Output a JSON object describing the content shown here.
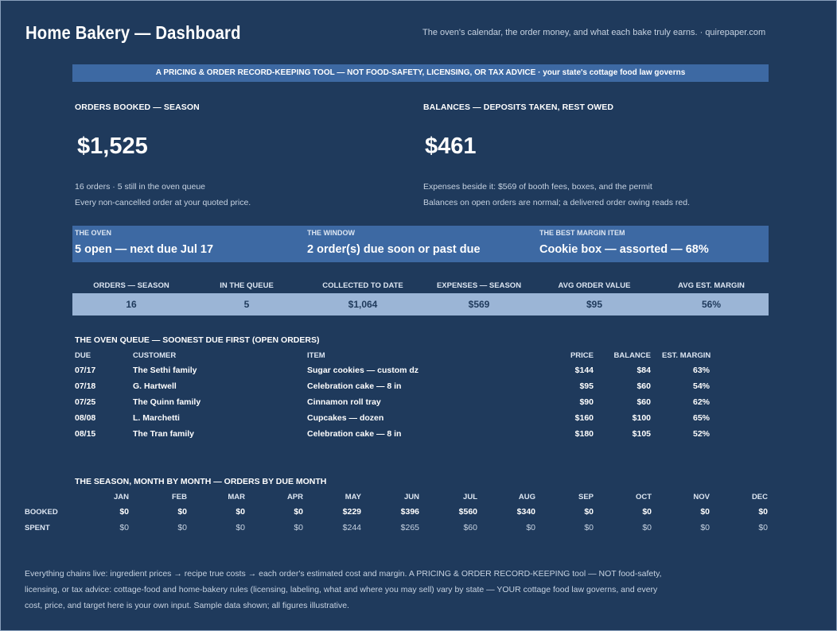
{
  "header": {
    "title": "Home Bakery — Dashboard",
    "tagline": "The oven's calendar, the order money, and what each bake truly earns.  ·  quirepaper.com"
  },
  "banner": "A PRICING & ORDER RECORD-KEEPING TOOL — NOT FOOD-SAFETY, LICENSING, OR TAX ADVICE  ·  your state's cottage food law governs",
  "orders_booked": {
    "label": "ORDERS BOOKED — SEASON",
    "value": "$1,525",
    "note1": "16 orders  ·  5 still in the oven queue",
    "note2": "Every non-cancelled order at your quoted price."
  },
  "balances": {
    "label": "BALANCES — DEPOSITS TAKEN, REST OWED",
    "value": "$461",
    "note1": "Expenses beside it: $569 of booth fees, boxes, and the permit",
    "note2": "Balances on open orders are normal; a delivered order owing reads red."
  },
  "status": [
    {
      "label": "THE OVEN",
      "value": "5 open — next due Jul 17"
    },
    {
      "label": "THE WINDOW",
      "value": "2 order(s) due soon or past due"
    },
    {
      "label": "THE BEST MARGIN ITEM",
      "value": "Cookie box — assorted — 68%"
    }
  ],
  "kpis": [
    {
      "label": "ORDERS — SEASON",
      "value": "16"
    },
    {
      "label": "IN THE QUEUE",
      "value": "5"
    },
    {
      "label": "COLLECTED TO DATE",
      "value": "$1,064"
    },
    {
      "label": "EXPENSES — SEASON",
      "value": "$569"
    },
    {
      "label": "AVG ORDER VALUE",
      "value": "$95"
    },
    {
      "label": "AVG EST. MARGIN",
      "value": "56%"
    }
  ],
  "queue": {
    "title": "THE OVEN QUEUE — SOONEST DUE FIRST (OPEN ORDERS)",
    "headers": {
      "due": "DUE",
      "customer": "CUSTOMER",
      "item": "ITEM",
      "price": "PRICE",
      "balance": "BALANCE",
      "margin": "EST. MARGIN"
    },
    "rows": [
      {
        "due": "07/17",
        "customer": "The Sethi family",
        "item": "Sugar cookies — custom dz",
        "price": "$144",
        "balance": "$84",
        "margin": "63%"
      },
      {
        "due": "07/18",
        "customer": "G. Hartwell",
        "item": "Celebration cake — 8 in",
        "price": "$95",
        "balance": "$60",
        "margin": "54%"
      },
      {
        "due": "07/25",
        "customer": "The Quinn family",
        "item": "Cinnamon roll tray",
        "price": "$90",
        "balance": "$60",
        "margin": "62%"
      },
      {
        "due": "08/08",
        "customer": "L. Marchetti",
        "item": "Cupcakes — dozen",
        "price": "$160",
        "balance": "$100",
        "margin": "65%"
      },
      {
        "due": "08/15",
        "customer": "The Tran family",
        "item": "Celebration cake — 8 in",
        "price": "$180",
        "balance": "$105",
        "margin": "52%"
      }
    ]
  },
  "season": {
    "title": "THE SEASON, MONTH BY MONTH — ORDERS BY DUE MONTH",
    "row_labels": {
      "booked": "BOOKED",
      "spent": "SPENT"
    },
    "months": [
      "JAN",
      "FEB",
      "MAR",
      "APR",
      "MAY",
      "JUN",
      "JUL",
      "AUG",
      "SEP",
      "OCT",
      "NOV",
      "DEC"
    ],
    "booked": [
      "$0",
      "$0",
      "$0",
      "$0",
      "$229",
      "$396",
      "$560",
      "$340",
      "$0",
      "$0",
      "$0",
      "$0"
    ],
    "spent": [
      "$0",
      "$0",
      "$0",
      "$0",
      "$244",
      "$265",
      "$60",
      "$0",
      "$0",
      "$0",
      "$0",
      "$0"
    ]
  },
  "footer": "Everything chains live: ingredient prices → recipe true costs → each order's estimated cost and margin. A PRICING & ORDER RECORD-KEEPING tool — NOT food-safety, licensing, or tax advice: cottage-food and home-bakery rules (licensing, labeling, what and where you may sell) vary by state — YOUR cottage food law governs, and every cost, price, and target here is your own input. Sample data shown; all figures illustrative."
}
